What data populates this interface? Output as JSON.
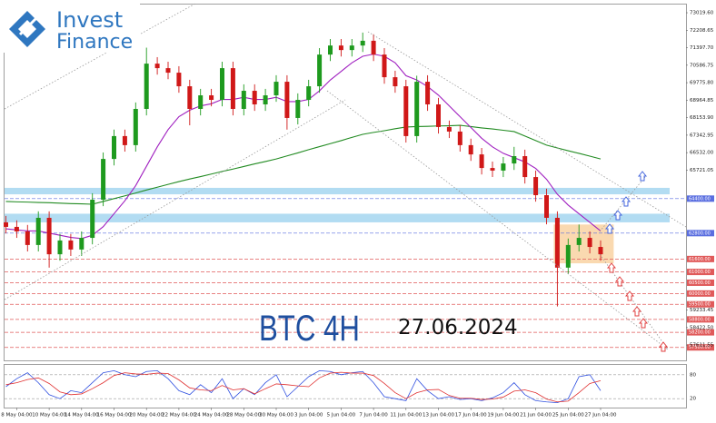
{
  "logo": {
    "line1": "Invest",
    "line2": "Finance"
  },
  "chart_data": {
    "type": "candlestick",
    "annotations": [
      "BTC 4H",
      "27.06.2024"
    ],
    "categories": [
      null,
      "8 May 04:00",
      null,
      null,
      "10 May 04:00",
      null,
      null,
      "14 May 04:00",
      null,
      null,
      "16 May 04:00",
      null,
      null,
      "20 May 04:00",
      null,
      null,
      "22 May 04:00",
      null,
      null,
      "24 May 04:00",
      null,
      null,
      "28 May 04:00",
      null,
      null,
      "30 May 04:00",
      null,
      null,
      "3 Jun 04:00",
      null,
      null,
      "5 Jun 04:00",
      null,
      null,
      "7 Jun 04:00",
      null,
      null,
      "11 Jun 04:00",
      null,
      null,
      "13 Jun 04:00",
      null,
      null,
      "17 Jun 04:00",
      null,
      null,
      "19 Jun 04:00",
      null,
      null,
      "21 Jun 04:00",
      null,
      null,
      "25 Jun 04:00",
      null,
      null,
      "27 Jun 04:00"
    ],
    "open": [
      63300,
      63090,
      62880,
      62250,
      63510,
      61820,
      62460,
      62040,
      62580,
      64350,
      66240,
      67300,
      66880,
      68560,
      70660,
      70450,
      70240,
      69610,
      68560,
      69190,
      68980,
      70450,
      68560,
      69400,
      68770,
      69190,
      69820,
      68140,
      68980,
      69610,
      71080,
      71500,
      71290,
      71500,
      71720,
      71080,
      70030,
      69610,
      67300,
      69820,
      68770,
      67720,
      67510,
      66880,
      66450,
      65820,
      65700,
      66030,
      66370,
      65400,
      64560,
      63510,
      61200,
      62250,
      62580,
      62160
    ],
    "high": [
      63600,
      63390,
      63180,
      63810,
      63810,
      62760,
      62760,
      62880,
      64650,
      66540,
      67600,
      67600,
      68860,
      71400,
      70960,
      70750,
      70540,
      69910,
      69490,
      69490,
      70750,
      70750,
      69700,
      69700,
      69490,
      70120,
      70120,
      69280,
      69910,
      71380,
      71800,
      71800,
      71800,
      72100,
      72020,
      71380,
      70330,
      69910,
      70100,
      70120,
      69070,
      68020,
      67810,
      67180,
      66750,
      66120,
      66330,
      66800,
      66670,
      65700,
      64860,
      63810,
      62550,
      63200,
      62880,
      62460
    ],
    "low": [
      62790,
      62580,
      61950,
      61950,
      61200,
      61520,
      61740,
      61740,
      62280,
      64050,
      65940,
      66580,
      66580,
      68260,
      70150,
      69940,
      69310,
      67800,
      68260,
      68680,
      68680,
      68260,
      68260,
      68470,
      68470,
      68890,
      67600,
      67840,
      68680,
      69310,
      70780,
      70990,
      70990,
      71200,
      70780,
      69730,
      69310,
      67000,
      67000,
      68470,
      67420,
      67210,
      66580,
      66150,
      65520,
      65400,
      65400,
      65730,
      65100,
      64260,
      63210,
      59400,
      60900,
      61950,
      61860,
      61520
    ],
    "close": [
      63090,
      62880,
      62250,
      63510,
      61820,
      62460,
      62040,
      62580,
      64350,
      66240,
      67300,
      66880,
      68560,
      70660,
      70450,
      70240,
      69610,
      68560,
      69190,
      68980,
      70450,
      68560,
      69400,
      68770,
      69190,
      69820,
      68140,
      68980,
      69610,
      71080,
      71500,
      71290,
      71500,
      71720,
      71080,
      70030,
      69610,
      67300,
      69820,
      68770,
      67720,
      67510,
      66880,
      66450,
      65820,
      65700,
      66030,
      66370,
      65400,
      64560,
      63510,
      61200,
      62250,
      62580,
      62160,
      61820
    ],
    "up_color": "#1e9a1e",
    "down_color": "#d01818",
    "series": [
      {
        "color": "#228b22",
        "values": [
          64270,
          64250,
          64240,
          64220,
          64210,
          64190,
          64170,
          64160,
          64140,
          64270,
          64400,
          64530,
          64660,
          64800,
          64930,
          65060,
          65190,
          65310,
          65420,
          65540,
          65660,
          65770,
          65890,
          66010,
          66120,
          66240,
          66380,
          66520,
          66670,
          66810,
          66950,
          67090,
          67240,
          67380,
          67470,
          67550,
          67640,
          67720,
          67740,
          67750,
          67770,
          67780,
          67800,
          67740,
          67680,
          67630,
          67570,
          67510,
          67300,
          67090,
          66880,
          66750,
          66620,
          66500,
          66370,
          66240
        ]
      },
      {
        "color": "#a020c0",
        "values": [
          63000,
          62950,
          62900,
          62900,
          62800,
          62700,
          62600,
          62550,
          62700,
          63100,
          63700,
          64300,
          65000,
          65900,
          66800,
          67600,
          68200,
          68500,
          68700,
          68800,
          69000,
          69000,
          69100,
          69000,
          69000,
          69100,
          68900,
          68900,
          69000,
          69400,
          69900,
          70300,
          70700,
          71000,
          71100,
          71000,
          70700,
          70100,
          69900,
          69600,
          69200,
          68700,
          68200,
          67700,
          67200,
          66800,
          66500,
          66300,
          66100,
          65800,
          65300,
          64600,
          64100,
          63700,
          63300,
          62900
        ]
      }
    ],
    "ylim": [
      56900,
      73400
    ],
    "yticks": [
      {
        "value": 73019.6,
        "label": "73019.60"
      },
      {
        "value": 72208.65,
        "label": "72208.65"
      },
      {
        "value": 71397.7,
        "label": "71397.70"
      },
      {
        "value": 70586.75,
        "label": "70586.75"
      },
      {
        "value": 69775.8,
        "label": "69775.80"
      },
      {
        "value": 68964.85,
        "label": "68964.85"
      },
      {
        "value": 68153.9,
        "label": "68153.90"
      },
      {
        "value": 67342.95,
        "label": "67342.95"
      },
      {
        "value": 66532,
        "label": "66532.00"
      },
      {
        "value": 65721.05,
        "label": "65721.05"
      },
      {
        "value": 59233.45,
        "label": "59233.45"
      },
      {
        "value": 58422.5,
        "label": "58422.50"
      },
      {
        "value": 57611.55,
        "label": "57611.55"
      }
    ],
    "bands": [
      {
        "low": 64600,
        "high": 64900,
        "color": "#9fd3ef"
      },
      {
        "low": 63300,
        "high": 63700,
        "color": "#9fd3ef"
      }
    ],
    "levels": [
      {
        "value": 64400,
        "label": "64400.00",
        "color": "#5a6ee0"
      },
      {
        "value": 62800,
        "label": "62800.00",
        "color": "#5a6ee0"
      },
      {
        "value": 61600,
        "label": "61600.00",
        "color": "#e05a5a"
      },
      {
        "value": 61000,
        "label": "61000.00",
        "color": "#e05a5a"
      },
      {
        "value": 60500,
        "label": "60500.00",
        "color": "#e05a5a"
      },
      {
        "value": 60000,
        "label": "60000.00",
        "color": "#e05a5a"
      },
      {
        "value": 59500,
        "label": "59500.00",
        "color": "#e05a5a"
      },
      {
        "value": 58800,
        "label": "58800.00",
        "color": "#e05a5a"
      },
      {
        "value": 58200,
        "label": "58200.00",
        "color": "#e05a5a"
      },
      {
        "value": 57500,
        "label": "57500.00",
        "color": "#e05a5a"
      }
    ],
    "zone": {
      "low": 61400,
      "high": 63200,
      "color": "#f9cf9c"
    },
    "oscillator": {
      "ylim": [
        0,
        100
      ],
      "yticks": [
        20,
        80
      ],
      "series": [
        {
          "color": "#3050e0",
          "values": [
            50,
            70,
            85,
            60,
            30,
            20,
            40,
            35,
            60,
            85,
            90,
            80,
            75,
            88,
            90,
            70,
            40,
            30,
            55,
            35,
            70,
            20,
            45,
            30,
            60,
            80,
            25,
            50,
            75,
            90,
            88,
            80,
            85,
            88,
            60,
            25,
            20,
            15,
            70,
            40,
            20,
            25,
            18,
            20,
            15,
            22,
            35,
            60,
            30,
            15,
            12,
            10,
            20,
            75,
            80,
            40
          ]
        },
        {
          "color": "#e03030",
          "values": [
            55,
            60,
            68,
            72,
            58,
            37,
            30,
            32,
            45,
            60,
            78,
            85,
            82,
            81,
            84,
            83,
            67,
            47,
            42,
            40,
            53,
            42,
            45,
            32,
            45,
            57,
            55,
            52,
            50,
            72,
            84,
            86,
            84,
            84,
            78,
            58,
            35,
            20,
            35,
            42,
            43,
            28,
            21,
            21,
            18,
            19,
            24,
            39,
            42,
            35,
            19,
            12,
            14,
            35,
            58,
            65
          ]
        }
      ]
    }
  }
}
